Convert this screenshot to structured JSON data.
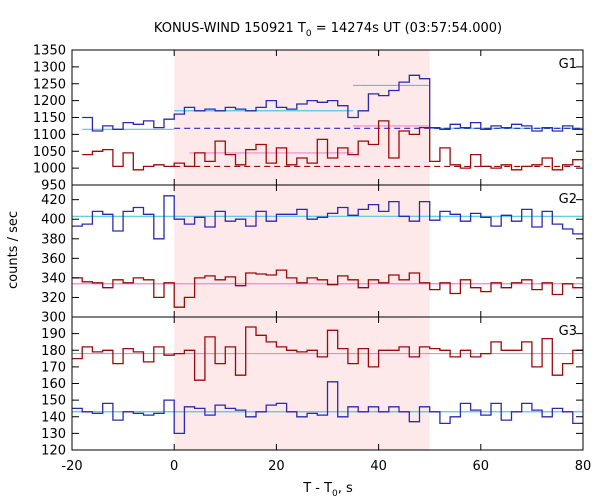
{
  "chart_data": {
    "type": "line",
    "title": "KONUS-WIND 150921 T",
    "title_sub": "0",
    "title_rest": " = 14274s UT (03:57:54.000)",
    "xlabel": "T - T",
    "xlabel_sub": "0",
    "xlabel_rest": ", s",
    "ylabel": "counts / sec",
    "xlim": [
      -20,
      80
    ],
    "x_ticks": [
      -20,
      0,
      20,
      40,
      60,
      80
    ],
    "highlight_interval": [
      0,
      50
    ],
    "colors": {
      "blue": "#2a2ab4",
      "red": "#9b0a0a",
      "cyan": "#4fc6e0",
      "pink": "#ee88cc",
      "shade": "#fde8ea"
    },
    "panels": [
      {
        "name": "G1",
        "ylim": [
          950,
          1350
        ],
        "y_ticks": [
          950,
          1000,
          1050,
          1100,
          1150,
          1200,
          1250,
          1300,
          1350
        ],
        "series": [
          {
            "color": "blue",
            "x": [
              -18,
              -16,
              -14,
              -12,
              -10,
              -8,
              -6,
              -4,
              -2,
              0,
              2,
              4,
              6,
              8,
              10,
              12,
              14,
              16,
              18,
              20,
              22,
              24,
              26,
              28,
              30,
              32,
              34,
              36,
              38,
              40,
              42,
              44,
              46,
              48,
              50,
              52,
              54,
              56,
              58,
              60,
              62,
              64,
              66,
              68,
              70,
              72,
              74,
              76,
              78
            ],
            "y": [
              1150,
              1110,
              1125,
              1115,
              1135,
              1130,
              1140,
              1120,
              1145,
              1160,
              1180,
              1170,
              1175,
              1170,
              1180,
              1175,
              1170,
              1180,
              1200,
              1180,
              1175,
              1190,
              1200,
              1195,
              1200,
              1185,
              1150,
              1170,
              1220,
              1215,
              1230,
              1255,
              1275,
              1265,
              1120,
              1115,
              1130,
              1120,
              1135,
              1115,
              1125,
              1120,
              1130,
              1125,
              1110,
              1120,
              1110,
              1125,
              1115
            ]
          },
          {
            "color": "red",
            "x": [
              -18,
              -16,
              -14,
              -12,
              -10,
              -8,
              -6,
              -4,
              -2,
              0,
              2,
              4,
              6,
              8,
              10,
              12,
              14,
              16,
              18,
              20,
              22,
              24,
              26,
              28,
              30,
              32,
              34,
              36,
              38,
              40,
              42,
              44,
              46,
              48,
              50,
              52,
              54,
              56,
              58,
              60,
              62,
              64,
              66,
              68,
              70,
              72,
              74,
              76,
              78
            ],
            "y": [
              1040,
              1050,
              1055,
              1005,
              1045,
              995,
              1005,
              1010,
              1005,
              1015,
              1005,
              1045,
              1020,
              1080,
              1040,
              1010,
              1055,
              1070,
              1015,
              1060,
              1010,
              1030,
              1015,
              1085,
              1030,
              1060,
              1040,
              1080,
              1070,
              1140,
              1030,
              1110,
              1100,
              1120,
              1020,
              1060,
              1010,
              1000,
              1040,
              1005,
              1000,
              1010,
              995,
              1005,
              1010,
              1030,
              995,
              1010,
              1025
            ]
          }
        ],
        "fits": [
          {
            "color": "cyan",
            "x0": -18,
            "x1": 0,
            "y": 1115
          },
          {
            "color": "cyan",
            "x0": 0,
            "x1": 35,
            "y": 1170
          },
          {
            "color": "cyan",
            "x0": 35,
            "x1": 50,
            "y": 1245
          },
          {
            "color": "cyan",
            "x0": 50,
            "x1": 80,
            "y": 1118
          },
          {
            "color": "pink",
            "x0": 3,
            "x1": 35,
            "y": 1045
          },
          {
            "color": "pink",
            "x0": 35,
            "x1": 50,
            "y": 1125
          }
        ],
        "bg_lines": [
          {
            "color": "blue",
            "x0": 0,
            "x1": 80,
            "y": 1118,
            "dash": true
          },
          {
            "color": "red",
            "x0": 0,
            "x1": 80,
            "y": 1005,
            "dash": true
          }
        ]
      },
      {
        "name": "G2",
        "ylim": [
          300,
          435
        ],
        "y_ticks": [
          300,
          320,
          340,
          360,
          380,
          400,
          420
        ],
        "series": [
          {
            "color": "blue",
            "x": [
              -20,
              -18,
              -16,
              -14,
              -12,
              -10,
              -8,
              -6,
              -4,
              -2,
              0,
              2,
              4,
              6,
              8,
              10,
              12,
              14,
              16,
              18,
              20,
              22,
              24,
              26,
              28,
              30,
              32,
              34,
              36,
              38,
              40,
              42,
              44,
              46,
              48,
              50,
              52,
              54,
              56,
              58,
              60,
              62,
              64,
              66,
              68,
              70,
              72,
              74,
              76,
              78
            ],
            "y": [
              393,
              395,
              408,
              405,
              388,
              408,
              412,
              405,
              380,
              424,
              400,
              395,
              402,
              392,
              408,
              398,
              400,
              393,
              408,
              398,
              405,
              405,
              410,
              400,
              402,
              406,
              412,
              404,
              410,
              415,
              408,
              418,
              403,
              398,
              418,
              399,
              408,
              405,
              398,
              406,
              402,
              393,
              404,
              398,
              410,
              392,
              408,
              395,
              390,
              385
            ]
          },
          {
            "color": "red",
            "x": [
              -20,
              -18,
              -16,
              -14,
              -12,
              -10,
              -8,
              -6,
              -4,
              -2,
              0,
              2,
              4,
              6,
              8,
              10,
              12,
              14,
              16,
              18,
              20,
              22,
              24,
              26,
              28,
              30,
              32,
              34,
              36,
              38,
              40,
              42,
              44,
              46,
              48,
              50,
              52,
              54,
              56,
              58,
              60,
              62,
              64,
              66,
              68,
              70,
              72,
              74,
              76,
              78
            ],
            "y": [
              340,
              336,
              335,
              330,
              338,
              335,
              340,
              338,
              320,
              335,
              310,
              320,
              340,
              342,
              338,
              341,
              332,
              345,
              344,
              343,
              348,
              340,
              335,
              340,
              338,
              333,
              342,
              338,
              330,
              338,
              335,
              343,
              338,
              345,
              335,
              328,
              335,
              324,
              338,
              330,
              326,
              335,
              330,
              335,
              338,
              328,
              335,
              323,
              334,
              330
            ]
          }
        ],
        "fits": [
          {
            "color": "cyan",
            "x0": -20,
            "x1": 80,
            "y": 403
          },
          {
            "color": "pink",
            "x0": -20,
            "x1": 80,
            "y": 334
          }
        ],
        "bg_lines": []
      },
      {
        "name": "G3",
        "ylim": [
          120,
          200
        ],
        "y_ticks": [
          120,
          130,
          140,
          150,
          160,
          170,
          180,
          190
        ],
        "series": [
          {
            "color": "red",
            "x": [
              -20,
              -18,
              -16,
              -14,
              -12,
              -10,
              -8,
              -6,
              -4,
              -2,
              0,
              2,
              4,
              6,
              8,
              10,
              12,
              14,
              16,
              18,
              20,
              22,
              24,
              26,
              28,
              30,
              32,
              34,
              36,
              38,
              40,
              42,
              44,
              46,
              48,
              50,
              52,
              54,
              56,
              58,
              60,
              62,
              64,
              66,
              68,
              70,
              72,
              74,
              76,
              78
            ],
            "y": [
              175,
              182,
              179,
              180,
              172,
              181,
              179,
              173,
              182,
              177,
              178,
              180,
              162,
              188,
              172,
              182,
              165,
              194,
              189,
              185,
              182,
              180,
              179,
              180,
              176,
              192,
              181,
              172,
              181,
              170,
              180,
              180,
              182,
              176,
              182,
              181,
              180,
              176,
              180,
              176,
              178,
              185,
              180,
              180,
              185,
              170,
              187,
              165,
              172,
              180
            ]
          },
          {
            "color": "blue",
            "x": [
              -20,
              -18,
              -16,
              -14,
              -12,
              -10,
              -8,
              -6,
              -4,
              -2,
              0,
              2,
              4,
              6,
              8,
              10,
              12,
              14,
              16,
              18,
              20,
              22,
              24,
              26,
              28,
              30,
              32,
              34,
              36,
              38,
              40,
              42,
              44,
              46,
              48,
              50,
              52,
              54,
              56,
              58,
              60,
              62,
              64,
              66,
              68,
              70,
              72,
              74,
              76,
              78
            ],
            "y": [
              145,
              143,
              142,
              148,
              138,
              143,
              142,
              141,
              142,
              150,
              130,
              146,
              145,
              141,
              147,
              145,
              144,
              140,
              143,
              147,
              148,
              143,
              140,
              142,
              141,
              161,
              140,
              146,
              143,
              146,
              143,
              146,
              143,
              137,
              146,
              143,
              136,
              140,
              148,
              144,
              141,
              148,
              138,
              143,
              148,
              144,
              140,
              145,
              143,
              136
            ]
          }
        ],
        "fits": [
          {
            "color": "pink",
            "x0": -20,
            "x1": 80,
            "y": 178
          },
          {
            "color": "cyan",
            "x0": -20,
            "x1": 80,
            "y": 143
          }
        ],
        "bg_lines": []
      }
    ]
  }
}
